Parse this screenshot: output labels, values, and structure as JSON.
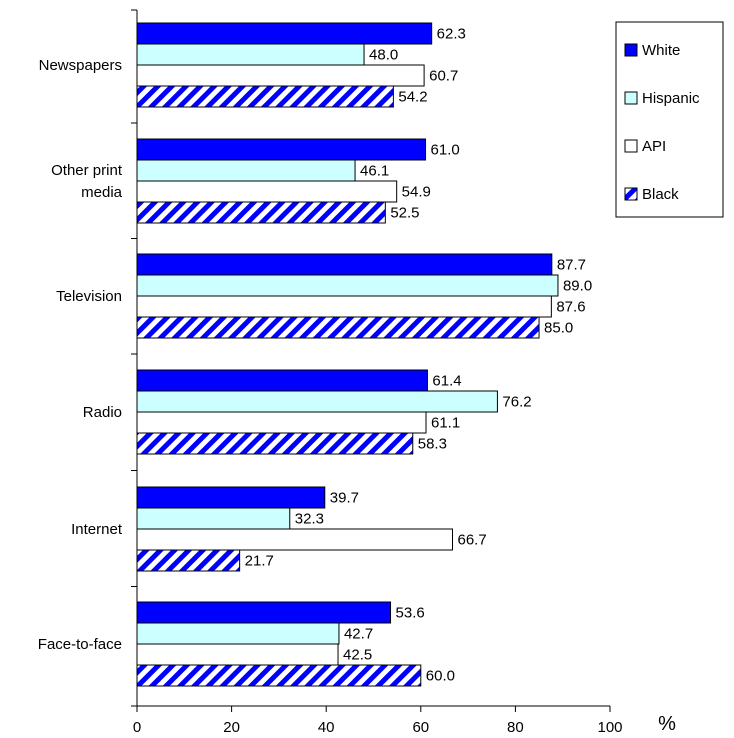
{
  "chart_data": {
    "type": "bar",
    "orientation": "horizontal",
    "categories": [
      "Newspapers",
      "Other print media",
      "Television",
      "Radio",
      "Internet",
      "Face-to-face"
    ],
    "category_lines": [
      [
        "Newspapers"
      ],
      [
        "Other print",
        "media"
      ],
      [
        "Television"
      ],
      [
        "Radio"
      ],
      [
        "Internet"
      ],
      [
        "Face-to-face"
      ]
    ],
    "series": [
      {
        "name": "White",
        "values": [
          62.3,
          61.0,
          87.7,
          61.4,
          39.7,
          53.6
        ],
        "fill": "#0000FF",
        "pattern": "solid"
      },
      {
        "name": "Hispanic",
        "values": [
          48.0,
          46.1,
          89.0,
          76.2,
          32.3,
          42.7
        ],
        "fill": "#CCFFFF",
        "pattern": "solid"
      },
      {
        "name": "API",
        "values": [
          60.7,
          54.9,
          87.6,
          61.1,
          66.7,
          42.5
        ],
        "fill": "#FFFFFF",
        "pattern": "solid"
      },
      {
        "name": "Black",
        "values": [
          54.2,
          52.5,
          85.0,
          58.3,
          21.7,
          60.0
        ],
        "fill": "#0000FF",
        "pattern": "diagonal-stripes"
      }
    ],
    "value_labels": [
      [
        "62.3",
        "61.0",
        "87.7",
        "61.4",
        "39.7",
        "53.6"
      ],
      [
        "48.0",
        "46.1",
        "89.0",
        "76.2",
        "32.3",
        "42.7"
      ],
      [
        "60.7",
        "54.9",
        "87.6",
        "61.1",
        "66.7",
        "42.5"
      ],
      [
        "54.2",
        "52.5",
        "85.0",
        "58.3",
        "21.7",
        "60.0"
      ]
    ],
    "xlim": [
      0,
      100
    ],
    "xticks": [
      "0",
      "20",
      "40",
      "60",
      "80",
      "100"
    ],
    "xunit": "%",
    "legend_position": "top-right",
    "grid": false
  }
}
